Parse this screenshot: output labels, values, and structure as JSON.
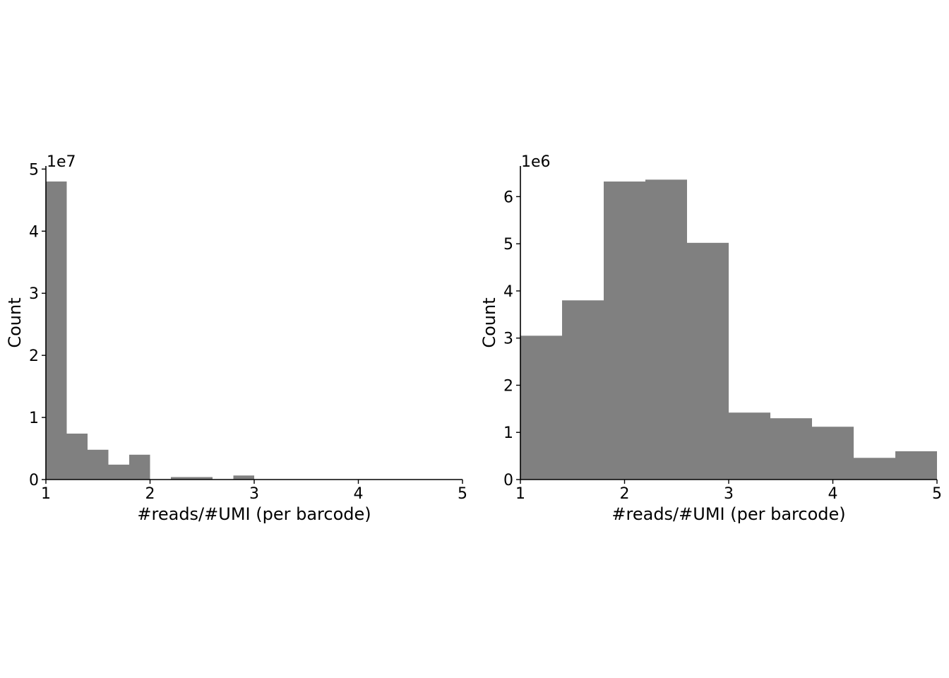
{
  "chart_data": [
    {
      "type": "bar",
      "histogram": true,
      "bin_edges": [
        1.0,
        1.2,
        1.4,
        1.6,
        1.8,
        2.0,
        2.2,
        2.4,
        2.6,
        2.8,
        3.0
      ],
      "values": [
        48000000,
        7400000,
        4800000,
        2400000,
        4000000,
        0,
        400000,
        400000,
        0,
        650000
      ],
      "xlabel": "#reads/#UMI (per barcode)",
      "ylabel": "Count",
      "y_offset_text": "1e7",
      "xlim": [
        1,
        5
      ],
      "ylim": [
        0,
        50500000
      ],
      "x_ticks": [
        1,
        2,
        3,
        4,
        5
      ],
      "x_tick_labels": [
        "1",
        "2",
        "3",
        "4",
        "5"
      ],
      "y_ticks": [
        0,
        10000000,
        20000000,
        30000000,
        40000000,
        50000000
      ],
      "y_tick_labels": [
        "0",
        "1",
        "2",
        "3",
        "4",
        "5"
      ],
      "bar_color": "#808080",
      "grid": false,
      "legend": "none"
    },
    {
      "type": "bar",
      "histogram": true,
      "bin_edges": [
        1.0,
        1.4,
        1.8,
        2.2,
        2.6,
        3.0,
        3.4,
        3.8,
        4.2,
        4.6,
        5.0
      ],
      "values": [
        3050000,
        3800000,
        6320000,
        6360000,
        5020000,
        1420000,
        1300000,
        1120000,
        460000,
        600000
      ],
      "xlabel": "#reads/#UMI (per barcode)",
      "ylabel": "Count",
      "y_offset_text": "1e6",
      "xlim": [
        1,
        5
      ],
      "ylim": [
        0,
        6650000
      ],
      "x_ticks": [
        1,
        2,
        3,
        4,
        5
      ],
      "x_tick_labels": [
        "1",
        "2",
        "3",
        "4",
        "5"
      ],
      "y_ticks": [
        0,
        1000000,
        2000000,
        3000000,
        4000000,
        5000000,
        6000000
      ],
      "y_tick_labels": [
        "0",
        "1",
        "2",
        "3",
        "4",
        "5",
        "6"
      ],
      "bar_color": "#808080",
      "grid": false,
      "legend": "none"
    }
  ]
}
